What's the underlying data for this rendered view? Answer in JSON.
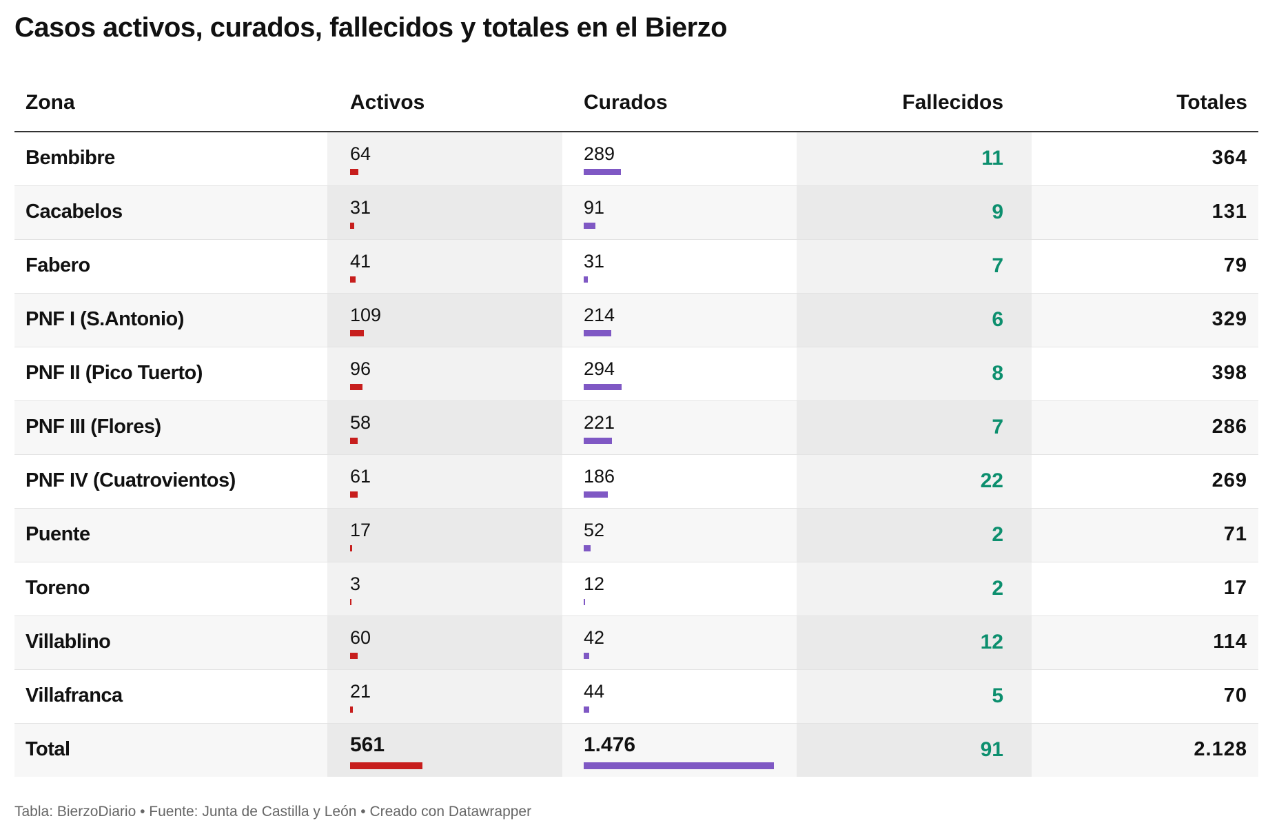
{
  "title": "Casos activos, curados, fallecidos y totales en el Bierzo",
  "footer": "Tabla: BierzoDiario • Fuente: Junta de Castilla y León • Creado con Datawrapper",
  "colors": {
    "activos_bar": "#c71e1d",
    "curados_bar": "#7f58c4",
    "fallecidos_text": "#0c8f6e"
  },
  "chart_data": {
    "type": "table",
    "title": "Casos activos, curados, fallecidos y totales en el Bierzo",
    "columns": [
      "Zona",
      "Activos",
      "Curados",
      "Fallecidos",
      "Totales"
    ],
    "rows": [
      {
        "zona": "Bembibre",
        "activos": "64",
        "curados": "289",
        "fallecidos": "11",
        "totales": "364"
      },
      {
        "zona": "Cacabelos",
        "activos": "31",
        "curados": "91",
        "fallecidos": "9",
        "totales": "131"
      },
      {
        "zona": "Fabero",
        "activos": "41",
        "curados": "31",
        "fallecidos": "7",
        "totales": "79"
      },
      {
        "zona": "PNF I (S.Antonio)",
        "activos": "109",
        "curados": "214",
        "fallecidos": "6",
        "totales": "329"
      },
      {
        "zona": "PNF II (Pico Tuerto)",
        "activos": "96",
        "curados": "294",
        "fallecidos": "8",
        "totales": "398"
      },
      {
        "zona": "PNF III (Flores)",
        "activos": "58",
        "curados": "221",
        "fallecidos": "7",
        "totales": "286"
      },
      {
        "zona": "PNF IV (Cuatrovientos)",
        "activos": "61",
        "curados": "186",
        "fallecidos": "22",
        "totales": "269"
      },
      {
        "zona": "Puente",
        "activos": "17",
        "curados": "52",
        "fallecidos": "2",
        "totales": "71"
      },
      {
        "zona": "Toreno",
        "activos": "3",
        "curados": "12",
        "fallecidos": "2",
        "totales": "17"
      },
      {
        "zona": "Villablino",
        "activos": "60",
        "curados": "42",
        "fallecidos": "12",
        "totales": "114"
      },
      {
        "zona": "Villafranca",
        "activos": "21",
        "curados": "44",
        "fallecidos": "5",
        "totales": "70"
      }
    ],
    "total_row": {
      "zona": "Total",
      "activos": "561",
      "curados": "1.476",
      "fallecidos": "91",
      "totales": "2.128"
    },
    "bar_scale_max": 1476
  }
}
